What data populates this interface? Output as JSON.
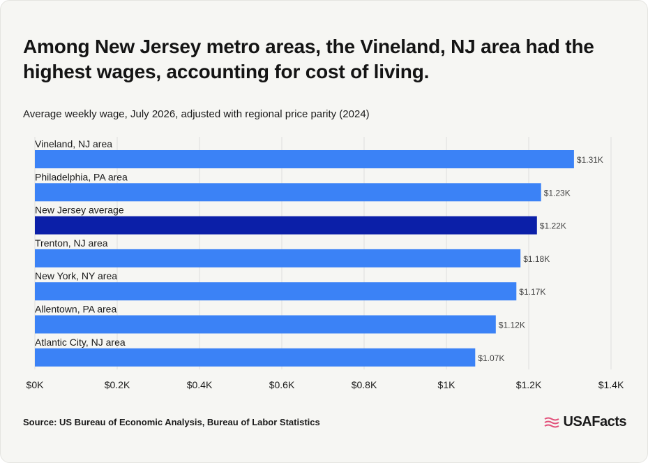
{
  "title": "Among New Jersey metro areas, the Vineland, NJ area had the highest wages, accounting for cost of living.",
  "subtitle": "Average weekly wage, July 2026, adjusted with regional price parity (2024)",
  "source": "Source: US Bureau of Economic Analysis, Bureau of Labor Statistics",
  "brand": "USAFacts",
  "colors": {
    "bar": "#3b82f6",
    "highlight": "#0b1fa8",
    "grid": "#dedede",
    "text": "#1a1a1a",
    "logo_flag": "#e2507a"
  },
  "chart_data": {
    "type": "bar",
    "orientation": "horizontal",
    "categories": [
      "Vineland, NJ area",
      "Philadelphia, PA area",
      "New Jersey average",
      "Trenton, NJ area",
      "New York, NY area",
      "Allentown, PA area",
      "Atlantic City, NJ area"
    ],
    "values": [
      1310,
      1230,
      1220,
      1180,
      1170,
      1120,
      1070
    ],
    "value_labels": [
      "$1.31K",
      "$1.23K",
      "$1.22K",
      "$1.18K",
      "$1.17K",
      "$1.12K",
      "$1.07K"
    ],
    "highlight": "New Jersey average",
    "xlim": [
      0,
      1400
    ],
    "xticks": [
      0,
      200,
      400,
      600,
      800,
      1000,
      1200,
      1400
    ],
    "xtick_labels": [
      "$0K",
      "$0.2K",
      "$0.4K",
      "$0.6K",
      "$0.8K",
      "$1K",
      "$1.2K",
      "$1.4K"
    ],
    "grid": true
  }
}
